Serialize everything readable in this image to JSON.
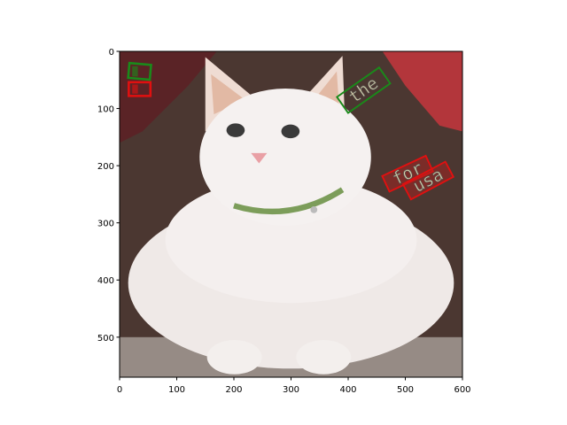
{
  "chart_data": {
    "type": "image",
    "xlim": [
      0,
      600
    ],
    "ylim": [
      570,
      0
    ],
    "xticks": [
      0,
      100,
      200,
      300,
      400,
      500,
      600
    ],
    "yticks": [
      0,
      100,
      200,
      300,
      400,
      500
    ],
    "annotations": [
      {
        "text": "the",
        "color": "#1a8a1a"
      },
      {
        "text": "for",
        "color": "#e01010"
      },
      {
        "text": "usa",
        "color": "#e01010"
      }
    ]
  }
}
